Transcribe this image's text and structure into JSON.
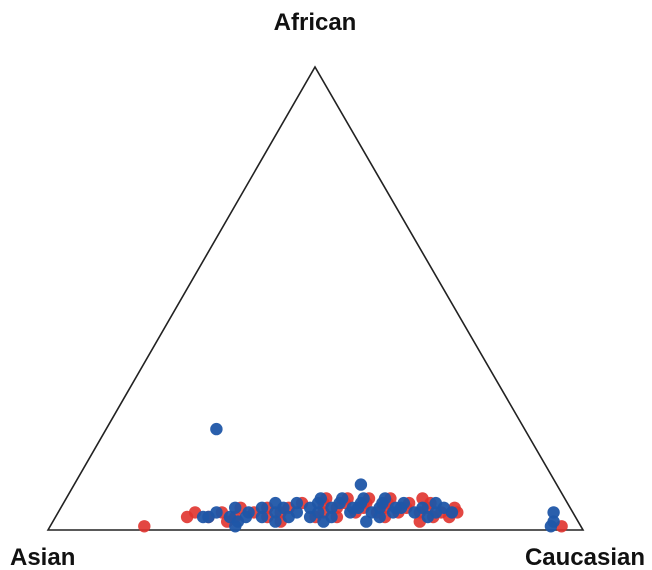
{
  "chart_data": {
    "type": "scatter",
    "subtype": "ternary",
    "title": "",
    "vertices": {
      "top": "African",
      "left": "Asian",
      "right": "Caucasian"
    },
    "grid": false,
    "legend": "none",
    "series": [
      {
        "color": "#e0332e",
        "points": [
          [
            0.03,
            0.22,
            0.75
          ],
          [
            0.03,
            0.25,
            0.72
          ],
          [
            0.04,
            0.27,
            0.69
          ],
          [
            0.03,
            0.29,
            0.68
          ],
          [
            0.04,
            0.31,
            0.65
          ],
          [
            0.03,
            0.33,
            0.64
          ],
          [
            0.04,
            0.35,
            0.61
          ],
          [
            0.03,
            0.37,
            0.6
          ],
          [
            0.04,
            0.39,
            0.57
          ],
          [
            0.03,
            0.41,
            0.56
          ],
          [
            0.05,
            0.3,
            0.65
          ],
          [
            0.05,
            0.34,
            0.61
          ],
          [
            0.05,
            0.38,
            0.57
          ],
          [
            0.05,
            0.42,
            0.53
          ],
          [
            0.04,
            0.44,
            0.52
          ],
          [
            0.03,
            0.47,
            0.5
          ],
          [
            0.02,
            0.49,
            0.49
          ],
          [
            0.05,
            0.46,
            0.49
          ],
          [
            0.06,
            0.33,
            0.61
          ],
          [
            0.06,
            0.37,
            0.57
          ],
          [
            0.06,
            0.41,
            0.53
          ],
          [
            0.05,
            0.5,
            0.45
          ],
          [
            0.04,
            0.53,
            0.43
          ],
          [
            0.03,
            0.55,
            0.42
          ],
          [
            0.06,
            0.45,
            0.49
          ],
          [
            0.04,
            0.57,
            0.39
          ],
          [
            0.02,
            0.58,
            0.4
          ],
          [
            0.03,
            0.6,
            0.37
          ],
          [
            0.04,
            0.62,
            0.34
          ],
          [
            0.02,
            0.64,
            0.34
          ],
          [
            0.03,
            0.66,
            0.31
          ],
          [
            0.02,
            0.69,
            0.29
          ],
          [
            0.03,
            0.71,
            0.26
          ],
          [
            0.02,
            0.73,
            0.25
          ],
          [
            0.01,
            0.56,
            0.43
          ],
          [
            0.02,
            0.45,
            0.53
          ],
          [
            0.02,
            0.36,
            0.62
          ],
          [
            0.02,
            0.27,
            0.71
          ],
          [
            0.06,
            0.27,
            0.67
          ],
          [
            0.05,
            0.26,
            0.69
          ],
          [
            0.01,
            0.3,
            0.69
          ],
          [
            0.04,
            0.22,
            0.74
          ],
          [
            0.02,
            0.24,
            0.74
          ],
          [
            0.01,
            0.66,
            0.33
          ],
          [
            0.0,
            0.82,
            0.18
          ],
          [
            0.0,
            0.04,
            0.96
          ]
        ]
      },
      {
        "color": "#1f56a8",
        "points": [
          [
            0.04,
            0.24,
            0.72
          ],
          [
            0.03,
            0.26,
            0.71
          ],
          [
            0.04,
            0.28,
            0.68
          ],
          [
            0.03,
            0.3,
            0.67
          ],
          [
            0.04,
            0.32,
            0.64
          ],
          [
            0.03,
            0.34,
            0.63
          ],
          [
            0.04,
            0.36,
            0.6
          ],
          [
            0.03,
            0.38,
            0.59
          ],
          [
            0.04,
            0.4,
            0.56
          ],
          [
            0.03,
            0.42,
            0.55
          ],
          [
            0.05,
            0.31,
            0.64
          ],
          [
            0.05,
            0.35,
            0.6
          ],
          [
            0.05,
            0.39,
            0.56
          ],
          [
            0.05,
            0.43,
            0.52
          ],
          [
            0.04,
            0.45,
            0.51
          ],
          [
            0.03,
            0.48,
            0.49
          ],
          [
            0.02,
            0.5,
            0.48
          ],
          [
            0.05,
            0.47,
            0.48
          ],
          [
            0.06,
            0.34,
            0.6
          ],
          [
            0.06,
            0.38,
            0.56
          ],
          [
            0.06,
            0.42,
            0.52
          ],
          [
            0.05,
            0.51,
            0.44
          ],
          [
            0.04,
            0.54,
            0.42
          ],
          [
            0.03,
            0.56,
            0.41
          ],
          [
            0.06,
            0.46,
            0.48
          ],
          [
            0.04,
            0.58,
            0.38
          ],
          [
            0.02,
            0.59,
            0.39
          ],
          [
            0.03,
            0.61,
            0.36
          ],
          [
            0.04,
            0.63,
            0.33
          ],
          [
            0.02,
            0.65,
            0.33
          ],
          [
            0.03,
            0.67,
            0.3
          ],
          [
            0.02,
            0.7,
            0.28
          ],
          [
            0.01,
            0.57,
            0.42
          ],
          [
            0.02,
            0.46,
            0.52
          ],
          [
            0.02,
            0.37,
            0.61
          ],
          [
            0.02,
            0.28,
            0.7
          ],
          [
            0.05,
            0.25,
            0.7
          ],
          [
            0.03,
            0.23,
            0.74
          ],
          [
            0.04,
            0.33,
            0.63
          ],
          [
            0.04,
            0.41,
            0.55
          ],
          [
            0.04,
            0.49,
            0.47
          ],
          [
            0.03,
            0.52,
            0.45
          ],
          [
            0.05,
            0.55,
            0.4
          ],
          [
            0.02,
            0.62,
            0.36
          ],
          [
            0.01,
            0.64,
            0.35
          ],
          [
            0.01,
            0.4,
            0.59
          ],
          [
            0.01,
            0.48,
            0.51
          ],
          [
            0.02,
            0.54,
            0.44
          ],
          [
            0.21,
            0.58,
            0.21
          ],
          [
            0.09,
            0.37,
            0.54
          ],
          [
            0.03,
            0.04,
            0.93
          ],
          [
            0.01,
            0.05,
            0.94
          ],
          [
            0.0,
            0.06,
            0.94
          ],
          [
            0.02,
            0.69,
            0.29
          ],
          [
            0.0,
            0.65,
            0.35
          ]
        ]
      }
    ]
  }
}
